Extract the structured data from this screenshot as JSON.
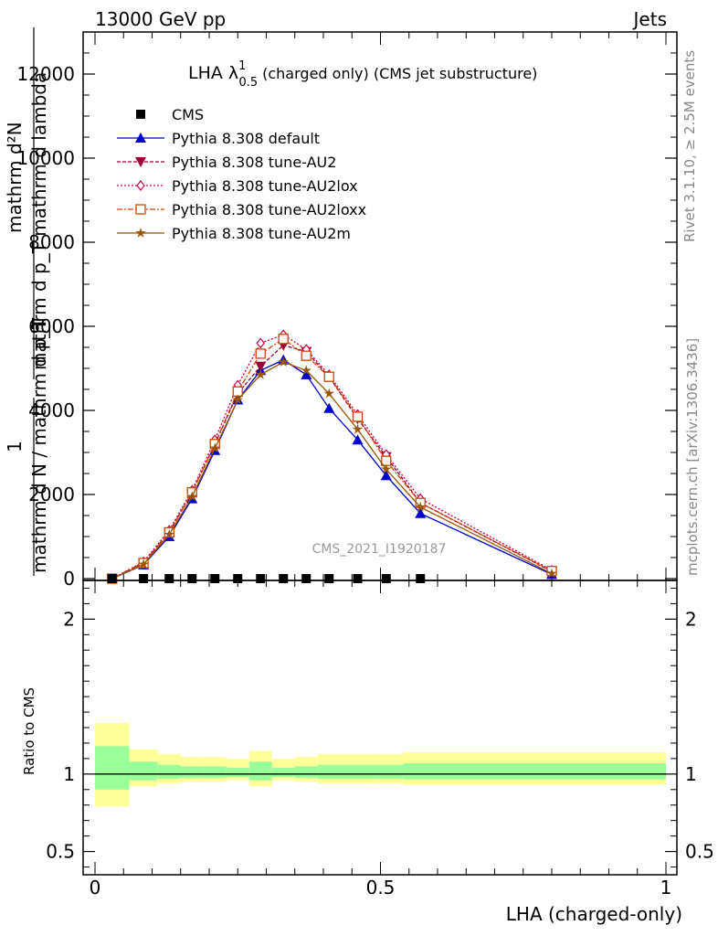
{
  "header": {
    "left": "13000 GeV pp",
    "right": "Jets"
  },
  "side_labels": {
    "rivet": "Rivet 3.1.10, ≥ 2.5M events",
    "mcplots": "mcplots.cern.ch [arXiv:1306.3436]"
  },
  "watermark": "CMS_2021_I1920187",
  "chart_data": [
    {
      "type": "line",
      "title": "LHA λ",
      "title_sup": "1",
      "title_sub": "0.5",
      "title_suffix": "(charged only) (CMS jet substructure)",
      "ylabel_numerator": "mathrm d²N",
      "ylabel_denominator": "mathrm d p_T mathrm d lambda",
      "ylabel_prefix": "1",
      "ylabel_prefix_den": "mathrm d N / mathrm d p_T",
      "xlim": [
        0,
        1
      ],
      "ylim": [
        0,
        13000
      ],
      "yticks": [
        0,
        2000,
        4000,
        6000,
        8000,
        10000,
        12000
      ],
      "grid": false,
      "legend_position": "top-left",
      "x": [
        0.03,
        0.085,
        0.13,
        0.17,
        0.21,
        0.25,
        0.29,
        0.33,
        0.37,
        0.41,
        0.46,
        0.51,
        0.57,
        0.8
      ],
      "series": [
        {
          "name": "CMS",
          "color": "#000000",
          "marker": "square",
          "values": [
            0,
            0,
            0,
            0,
            0,
            0,
            0,
            0,
            0,
            0,
            0,
            0,
            0,
            null
          ]
        },
        {
          "name": "Pythia 8.308 default",
          "color": "#0000cc",
          "marker": "triangle-up",
          "dash": "",
          "values": [
            0,
            330,
            1000,
            1900,
            3050,
            4250,
            4950,
            5200,
            4850,
            4050,
            3300,
            2450,
            1550,
            100
          ]
        },
        {
          "name": "Pythia 8.308 tune-AU2",
          "color": "#990033",
          "marker": "triangle-down",
          "dash": "4,2",
          "values": [
            0,
            380,
            1100,
            2050,
            3200,
            4400,
            5050,
            5550,
            5400,
            4800,
            3800,
            2900,
            1800,
            170
          ]
        },
        {
          "name": "Pythia 8.308 tune-AU2lox",
          "color": "#cc0044",
          "marker": "diamond",
          "dash": "2,2",
          "values": [
            0,
            400,
            1150,
            2100,
            3300,
            4600,
            5600,
            5800,
            5450,
            4850,
            3900,
            2950,
            1900,
            200
          ]
        },
        {
          "name": "Pythia 8.308 tune-AU2loxx",
          "color": "#cc4400",
          "marker": "square-open",
          "dash": "6,2,2,2",
          "values": [
            0,
            370,
            1100,
            2050,
            3200,
            4450,
            5350,
            5700,
            5300,
            4800,
            3850,
            2800,
            1800,
            180
          ]
        },
        {
          "name": "Pythia 8.308 tune-AU2m",
          "color": "#995500",
          "marker": "star",
          "dash": "",
          "values": [
            0,
            340,
            1050,
            1950,
            3100,
            4250,
            4850,
            5150,
            4950,
            4400,
            3550,
            2600,
            1700,
            120
          ]
        }
      ]
    },
    {
      "type": "area",
      "ylabel": "Ratio to CMS",
      "xlabel": "LHA (charged-only)",
      "xlim": [
        0,
        1
      ],
      "ylim": [
        0.35,
        2.25
      ],
      "yticks": [
        0.5,
        1,
        2
      ],
      "xticks": [
        0,
        0.5,
        1
      ],
      "bins": [
        0,
        0.06,
        0.11,
        0.15,
        0.19,
        0.23,
        0.27,
        0.31,
        0.35,
        0.39,
        0.44,
        0.49,
        0.54,
        0.6,
        1.0
      ],
      "band_outer_low": [
        0.79,
        0.92,
        0.94,
        0.95,
        0.95,
        0.96,
        0.92,
        0.96,
        0.95,
        0.94,
        0.94,
        0.94,
        0.93,
        0.93
      ],
      "band_outer_high": [
        1.33,
        1.16,
        1.13,
        1.11,
        1.11,
        1.1,
        1.15,
        1.1,
        1.11,
        1.13,
        1.13,
        1.13,
        1.14,
        1.14
      ],
      "band_inner_low": [
        0.9,
        0.96,
        0.97,
        0.975,
        0.975,
        0.98,
        0.96,
        0.98,
        0.975,
        0.97,
        0.97,
        0.97,
        0.965,
        0.965
      ],
      "band_inner_high": [
        1.18,
        1.08,
        1.06,
        1.05,
        1.05,
        1.04,
        1.08,
        1.04,
        1.05,
        1.06,
        1.06,
        1.06,
        1.07,
        1.07
      ],
      "band_outer_color": "#ffff99",
      "band_inner_color": "#99ff99",
      "reference_line": 1
    }
  ]
}
